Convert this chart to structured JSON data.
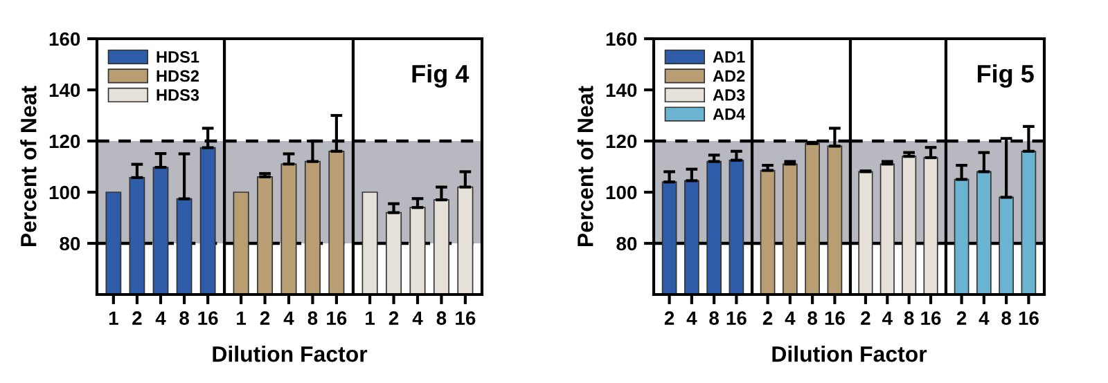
{
  "chart_data": [
    {
      "type": "bar",
      "ylabel": "Percent of Neat",
      "categories": [
        "1",
        "2",
        "4",
        "8",
        "16"
      ],
      "ylim": [
        60,
        160
      ],
      "yticks": [
        80,
        100,
        120,
        140,
        160
      ],
      "legend": "top left",
      "tick_labels": "xy",
      "series": [
        {
          "name": "HDS1",
          "color": "#2f5ca8",
          "values": [
            100,
            105.7,
            109.7,
            97.4,
            117.4
          ],
          "errors": [
            null,
            [
              105.7,
              110.9
            ],
            [
              109.7,
              115.1
            ],
            [
              97.4,
              115
            ],
            [
              117.4,
              125
            ]
          ]
        }
      ],
      "bands": [
        {
          "axis": "y",
          "from": 80,
          "to": 120,
          "color": "#b8b8c0"
        }
      ],
      "ref_lines": [
        {
          "axis": "y",
          "value": 80,
          "line_style": "dashed"
        },
        {
          "axis": "y",
          "value": 120,
          "line_style": "dashed"
        }
      ]
    },
    {
      "type": "bar",
      "xlabel": "Dilution Factor",
      "categories": [
        "1",
        "2",
        "4",
        "8",
        "16"
      ],
      "ylim": [
        60,
        160
      ],
      "tick_labels": "x",
      "series": [
        {
          "name": "HDS2",
          "color": "#b89e72",
          "values": [
            100,
            106,
            111,
            112,
            116
          ],
          "errors": [
            null,
            [
              106,
              107.3
            ],
            [
              111,
              115
            ],
            [
              112,
              120
            ],
            [
              116,
              130
            ]
          ]
        }
      ],
      "bands": [
        {
          "axis": "y",
          "from": 80,
          "to": 120,
          "color": "#b8b8c0"
        }
      ],
      "ref_lines": [
        {
          "axis": "y",
          "value": 80,
          "line_style": "dashed"
        },
        {
          "axis": "y",
          "value": 120,
          "line_style": "dashed"
        }
      ]
    },
    {
      "type": "bar",
      "categories": [
        "1",
        "2",
        "4",
        "8",
        "16"
      ],
      "ylim": [
        60,
        160
      ],
      "tick_labels": "x",
      "annotations": [
        "Fig 4"
      ],
      "series": [
        {
          "name": "HDS3",
          "color": "#e6e1d8",
          "values": [
            100,
            92,
            94,
            97,
            102
          ],
          "errors": [
            null,
            [
              92,
              95.5
            ],
            [
              94,
              97.5
            ],
            [
              97,
              102
            ],
            [
              102,
              108
            ]
          ]
        }
      ],
      "bands": [
        {
          "axis": "y",
          "from": 80,
          "to": 120,
          "color": "#b8b8c0"
        }
      ],
      "ref_lines": [
        {
          "axis": "y",
          "value": 80,
          "line_style": "dashed"
        },
        {
          "axis": "y",
          "value": 120,
          "line_style": "dashed"
        }
      ]
    },
    {
      "type": "bar",
      "ylabel": "Percent of Neat",
      "categories": [
        "2",
        "4",
        "8",
        "16"
      ],
      "ylim": [
        60,
        160
      ],
      "yticks": [
        80,
        100,
        120,
        140,
        160
      ],
      "legend": "top left",
      "series": [
        {
          "name": "AD1",
          "color": "#2f5ca8",
          "values": [
            104,
            104.5,
            112,
            112.5
          ],
          "errors": [
            [
              104,
              108
            ],
            [
              104.5,
              109
            ],
            [
              112,
              114.5
            ],
            [
              112.5,
              116
            ]
          ]
        }
      ],
      "bands": [
        {
          "axis": "y",
          "from": 80,
          "to": 120,
          "color": "#b8b8c0"
        }
      ],
      "ref_lines": [
        {
          "axis": "y",
          "value": 80,
          "line_style": "dashed"
        },
        {
          "axis": "y",
          "value": 120,
          "line_style": "dashed"
        }
      ]
    },
    {
      "type": "bar",
      "xlabel": "Dilution Factor",
      "categories": [
        "2",
        "4",
        "8",
        "16"
      ],
      "ylim": [
        60,
        160
      ],
      "tick_labels": "x",
      "series": [
        {
          "name": "AD2",
          "color": "#b89e72",
          "values": [
            108.5,
            111,
            119,
            118
          ],
          "errors": [
            [
              108.5,
              110.5
            ],
            [
              111,
              112
            ],
            [
              119,
              119.5
            ],
            [
              118,
              125
            ]
          ]
        }
      ],
      "bands": [
        {
          "axis": "y",
          "from": 80,
          "to": 120,
          "color": "#b8b8c0"
        }
      ],
      "ref_lines": [
        {
          "axis": "y",
          "value": 80,
          "line_style": "dashed"
        },
        {
          "axis": "y",
          "value": 120,
          "line_style": "dashed"
        }
      ]
    },
    {
      "type": "bar",
      "categories": [
        "2",
        "4",
        "8",
        "16"
      ],
      "ylim": [
        60,
        160
      ],
      "tick_labels": "x",
      "series": [
        {
          "name": "AD3",
          "color": "#e6e1d8",
          "values": [
            108,
            111,
            114,
            113.5
          ],
          "errors": [
            [
              108,
              108.3
            ],
            [
              111,
              112
            ],
            [
              114,
              115.5
            ],
            [
              113.5,
              117.5
            ]
          ]
        }
      ],
      "bands": [
        {
          "axis": "y",
          "from": 80,
          "to": 120,
          "color": "#b8b8c0"
        }
      ],
      "ref_lines": [
        {
          "axis": "y",
          "value": 80,
          "line_style": "dashed"
        },
        {
          "axis": "y",
          "value": 120,
          "line_style": "dashed"
        }
      ]
    },
    {
      "type": "bar",
      "categories": [
        "2",
        "4",
        "8",
        "16"
      ],
      "ylim": [
        60,
        160
      ],
      "tick_labels": "x",
      "annotations": [
        "Fig 5"
      ],
      "series": [
        {
          "name": "AD4",
          "color": "#6ab4d2",
          "values": [
            105,
            108,
            98,
            116
          ],
          "errors": [
            [
              105,
              110.5
            ],
            [
              108,
              115.5
            ],
            [
              98,
              121
            ],
            [
              116,
              125.7
            ]
          ]
        }
      ],
      "bands": [
        {
          "axis": "y",
          "from": 80,
          "to": 120,
          "color": "#b8b8c0"
        }
      ],
      "ref_lines": [
        {
          "axis": "y",
          "value": 80,
          "line_style": "dashed"
        },
        {
          "axis": "y",
          "value": 120,
          "line_style": "dashed"
        }
      ]
    }
  ]
}
